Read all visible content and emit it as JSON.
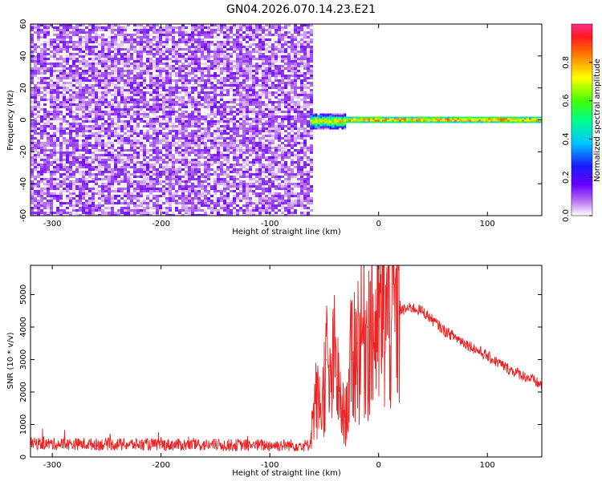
{
  "title": "GN04.2026.070.14.23.E21",
  "chart_data": [
    {
      "type": "heatmap",
      "xlabel": "Height of straight line (km)",
      "ylabel": "Frequency (Hz)",
      "xlim": [
        -320,
        150
      ],
      "ylim": [
        -60,
        60
      ],
      "xticks": [
        -300,
        -200,
        -100,
        0,
        100
      ],
      "yticks": [
        -60,
        -40,
        -20,
        0,
        20,
        40,
        60
      ],
      "colorbar": {
        "label": "Normalized spectral amplitude",
        "range": [
          0,
          1
        ],
        "ticks": [
          0.0,
          0.2,
          0.4,
          0.6,
          0.8
        ],
        "colormap": "white-purple-blue-cyan-green-yellow-red-magenta"
      },
      "regions": [
        {
          "x": [
            -320,
            -63
          ],
          "freq": [
            -60,
            60
          ],
          "description": "broadband noise",
          "level_min": 0.0,
          "level_max": 0.15
        },
        {
          "x": [
            -63,
            -30
          ],
          "freq": [
            -6,
            4
          ],
          "description": "onset of narrowband signal",
          "level_min": 0.2,
          "level_max": 0.9
        },
        {
          "x": [
            -30,
            150
          ],
          "freq": [
            -2,
            2
          ],
          "description": "narrowband signal near 0 Hz",
          "level_min": 0.5,
          "level_max": 1.0
        }
      ]
    },
    {
      "type": "line",
      "xlabel": "Height of straight line (km)",
      "ylabel": "SNR (10 * v/v)",
      "xlim": [
        -320,
        150
      ],
      "ylim": [
        0,
        5900
      ],
      "xticks": [
        -300,
        -200,
        -100,
        0,
        100
      ],
      "yticks": [
        0,
        1000,
        2000,
        3000,
        4000,
        5000
      ],
      "series": [
        {
          "color": "#ee2222",
          "x": [
            -320,
            -300,
            -250,
            -200,
            -150,
            -100,
            -64,
            -62,
            -58,
            -52,
            -48,
            -45,
            -40,
            -35,
            -30,
            -25,
            -20,
            -10,
            0,
            5,
            10,
            20,
            30,
            40,
            50,
            60,
            70,
            80,
            90,
            100,
            110,
            120,
            130,
            140,
            150
          ],
          "values": [
            420,
            400,
            390,
            380,
            370,
            360,
            360,
            800,
            1800,
            1500,
            3000,
            2000,
            3100,
            1500,
            1200,
            3000,
            3500,
            4000,
            4000,
            4300,
            4400,
            4500,
            4600,
            4500,
            4200,
            3900,
            3700,
            3500,
            3300,
            3100,
            2900,
            2700,
            2550,
            2400,
            2200
          ]
        }
      ]
    }
  ]
}
